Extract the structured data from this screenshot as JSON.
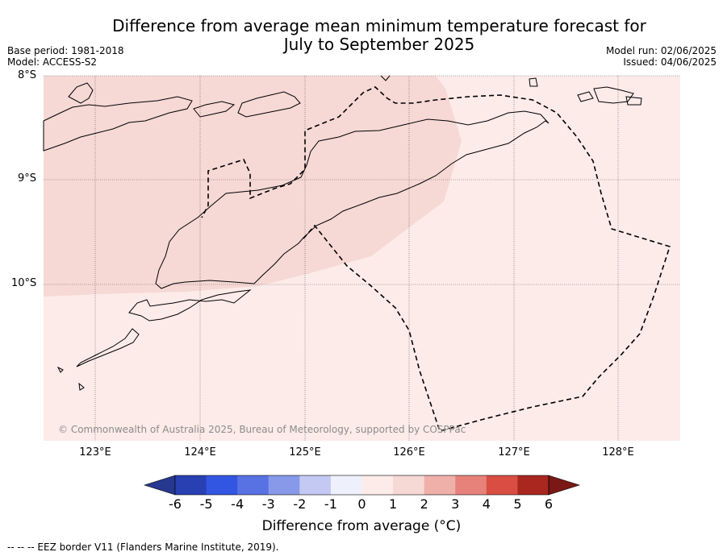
{
  "title": {
    "line1": "Difference from average mean minimum temperature forecast for",
    "line2": "July to September 2025"
  },
  "meta_left": {
    "base_period": "Base period: 1981-2018",
    "model": "Model: ACCESS-S2"
  },
  "meta_right": {
    "model_run": "Model run: 02/06/2025",
    "issued": "Issued: 04/06/2025"
  },
  "map": {
    "lat_labels": [
      "8°S",
      "9°S",
      "10°S"
    ],
    "lon_labels": [
      "123°E",
      "124°E",
      "125°E",
      "126°E",
      "127°E",
      "128°E"
    ],
    "copyright": "© Commonwealth of Australia 2025, Bureau of Meteorology, supported by COSPPac",
    "colors": {
      "anomaly_1_2": "#f6d8d4",
      "anomaly_0_1": "#fcebe8",
      "coast": "#000000",
      "eez": "#000000"
    }
  },
  "colorbar": {
    "ticks": [
      "-6",
      "-5",
      "-4",
      "-3",
      "-2",
      "-1",
      "0",
      "1",
      "2",
      "3",
      "4",
      "5",
      "6"
    ],
    "colors": [
      "#26388f",
      "#2940b2",
      "#3356e2",
      "#5872e4",
      "#8799e8",
      "#c3c9f3",
      "#eef0fb",
      "#fcebe8",
      "#f6d8d4",
      "#efb0aa",
      "#e7827a",
      "#d94d43",
      "#a9271f",
      "#7a1815"
    ],
    "label": "Difference from average (°C)"
  },
  "footer": "-- -- -- EEZ border V11 (Flanders Marine Institute, 2019)."
}
